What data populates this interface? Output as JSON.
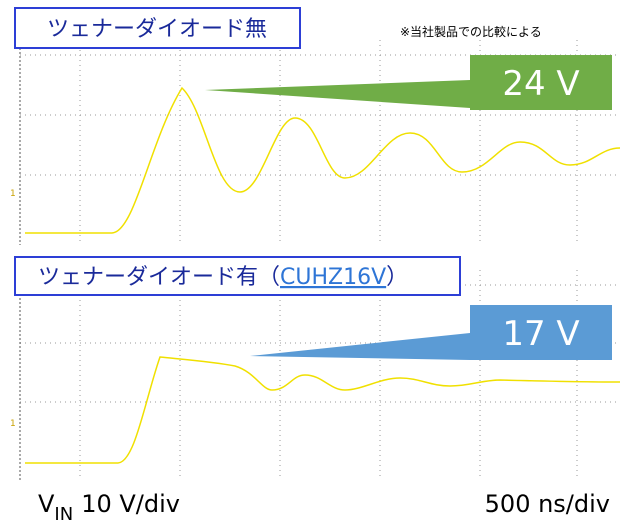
{
  "top_panel": {
    "label": "ツェナーダイオード無",
    "note": "※当社製品での比較による",
    "callout": "24 V"
  },
  "bottom_panel": {
    "label_prefix": "ツェナーダイオード有（",
    "label_link": "CUHZ16V",
    "label_suffix": "）",
    "callout": "17 V"
  },
  "footer": {
    "v_symbol": "V",
    "v_subscript": "IN",
    "v_scale": "10 V/div",
    "time_scale": "500 ns/div"
  }
}
